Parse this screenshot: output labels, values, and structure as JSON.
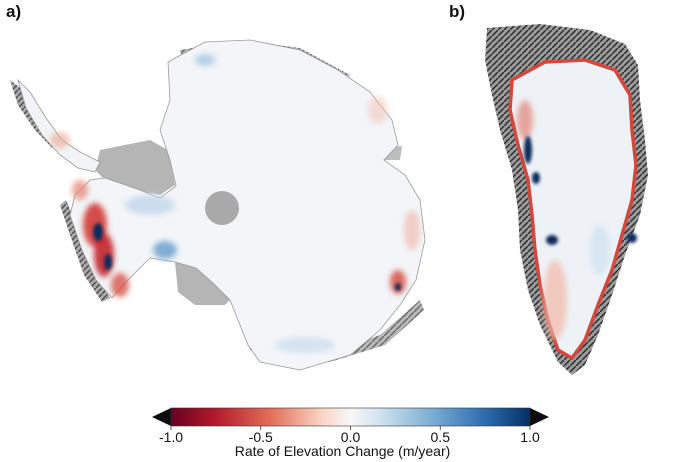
{
  "panels": {
    "a": {
      "label": "a)"
    },
    "b": {
      "label": "b)"
    }
  },
  "colorbar": {
    "label": "Rate of Elevation Change (m/year)",
    "ticks": [
      "-1.0",
      "-0.5",
      "0.0",
      "0.5",
      "1.0"
    ],
    "range": [
      -1.0,
      1.0
    ],
    "extend": "both",
    "colors": {
      "min_extend": "#0d0d0d",
      "strong_loss": "#8b0a15",
      "loss": "#e0634f",
      "neutral": "#f6f6f6",
      "gain": "#6fa8d0",
      "strong_gain": "#0b2c5c",
      "max_extend": "#0d0d0d"
    }
  },
  "colors": {
    "ice_sheet": "#f4f6f8",
    "ice_shelf_grey": "#b9b9b9",
    "rock_dark": "#3a3a3a"
  }
}
